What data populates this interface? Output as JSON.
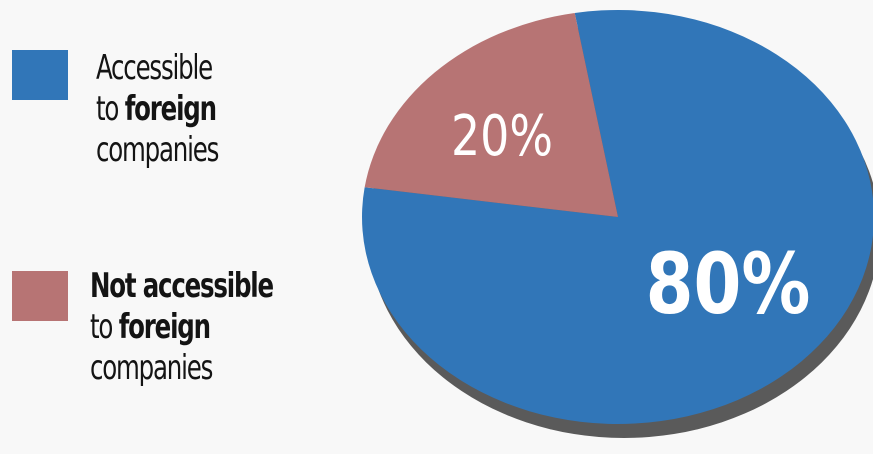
{
  "chart_data": {
    "type": "pie",
    "categories": [
      "Accessible to foreign companies",
      "Not accessible to foreign companies"
    ],
    "values": [
      80,
      20
    ],
    "slice_labels": [
      "80%",
      "20%"
    ],
    "colors": [
      "#3176b8",
      "#b77474"
    ],
    "shadow_color": "#5a5a5a",
    "legend": [
      {
        "line1": "Accessible",
        "line2_prefix": "to ",
        "line2_bold": "foreign",
        "line3": "companies",
        "color": "#3176b8"
      },
      {
        "line1_bold": "Not accessible",
        "line2_prefix": "to ",
        "line2_bold": "foreign",
        "line3": "companies",
        "color": "#b77474"
      }
    ],
    "legend_placement": "left",
    "three_d": true
  }
}
